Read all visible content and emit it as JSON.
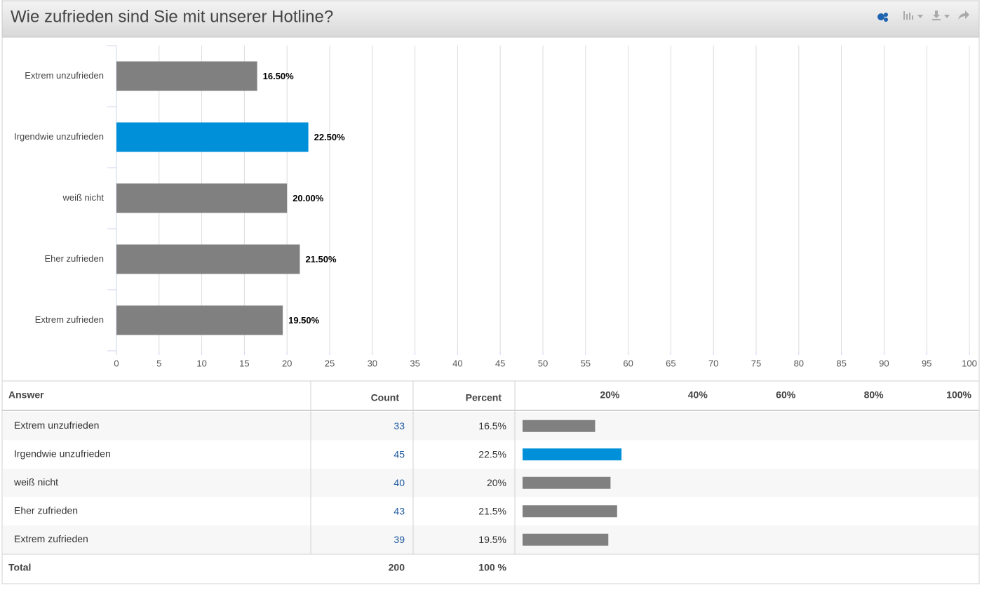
{
  "header": {
    "title": "Wie zufrieden sind Sie mit unserer Hotline?"
  },
  "chart_data": {
    "type": "bar",
    "orientation": "horizontal",
    "categories": [
      "Extrem unzufrieden",
      "Irgendwie unzufrieden",
      "weiß nicht",
      "Eher zufrieden",
      "Extrem zufrieden"
    ],
    "values": [
      16.5,
      22.5,
      20,
      21.5,
      19.5
    ],
    "value_labels": [
      "16.50%",
      "22.50%",
      "20.00%",
      "21.50%",
      "19.50%"
    ],
    "colors": [
      "#808080",
      "#0090d9",
      "#808080",
      "#808080",
      "#808080"
    ],
    "xlim": [
      0,
      100
    ],
    "xticks": [
      0,
      5,
      10,
      15,
      20,
      25,
      30,
      35,
      40,
      45,
      50,
      55,
      60,
      65,
      70,
      75,
      80,
      85,
      90,
      95,
      100
    ],
    "grid": true
  },
  "table": {
    "columns": [
      "Answer",
      "Count",
      "Percent"
    ],
    "scale_xlim": [
      0,
      100
    ],
    "scale_ticks": [
      {
        "value": 20,
        "label": "20%"
      },
      {
        "value": 40,
        "label": "40%"
      },
      {
        "value": 60,
        "label": "60%"
      },
      {
        "value": 80,
        "label": "80%"
      },
      {
        "value": 100,
        "label": "100%"
      }
    ],
    "rows": [
      {
        "answer": "Extrem unzufrieden",
        "count": 33,
        "percent": {
          "value": 16.5,
          "label": "16.5%"
        }
      },
      {
        "answer": "Irgendwie unzufrieden",
        "count": 45,
        "percent": {
          "value": 22.5,
          "label": "22.5%"
        }
      },
      {
        "answer": "weiß nicht",
        "count": 40,
        "percent": {
          "value": 20,
          "label": "20%"
        }
      },
      {
        "answer": "Eher zufrieden",
        "count": 43,
        "percent": {
          "value": 21.5,
          "label": "21.5%"
        }
      },
      {
        "answer": "Extrem zufrieden",
        "count": 39,
        "percent": {
          "value": 19.5,
          "label": "19.5%"
        }
      }
    ],
    "total": {
      "label": "Total",
      "count": 200,
      "percent": "100 %"
    }
  }
}
